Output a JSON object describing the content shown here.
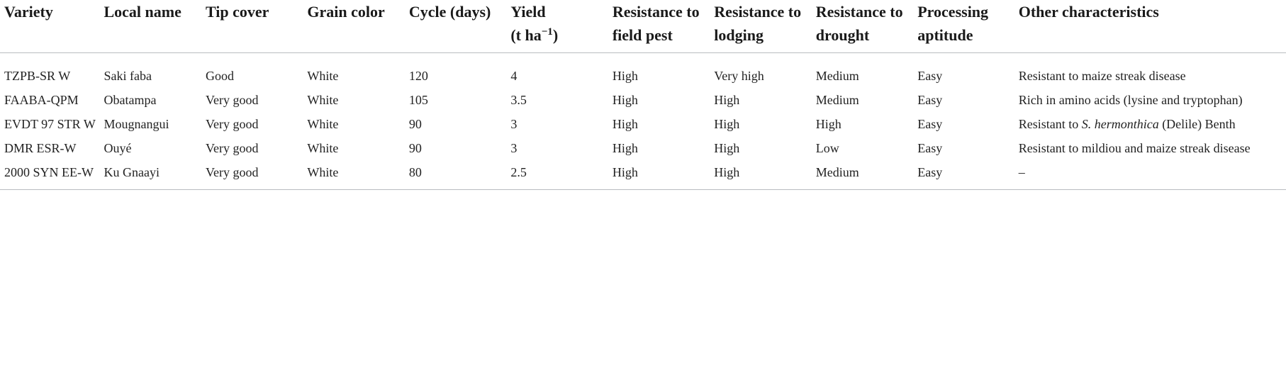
{
  "headers": {
    "variety": "Variety",
    "local_name": "Local name",
    "tip_cover": "Tip cover",
    "grain_color": "Grain color",
    "cycle": "Cycle (days)",
    "yield_prefix": "(t ha",
    "yield_exp": "−1",
    "yield_suffix": ")",
    "yield_title": "Yield",
    "field_pest": "Resistance to field pest",
    "lodging": "Resistance to lodging",
    "drought": "Resistance to drought",
    "processing": "Processing aptitude",
    "other": "Other characteristics"
  },
  "rows": [
    {
      "variety": "TZPB-SR W",
      "local_name": "Saki faba",
      "tip_cover": "Good",
      "grain_color": "White",
      "cycle": "120",
      "yield": "4",
      "field_pest": "High",
      "lodging": "Very high",
      "drought": "Medium",
      "processing": "Easy",
      "other_a": "Resistant to maize streak disease",
      "other_b": "",
      "other_c": ""
    },
    {
      "variety": "FAABA-QPM",
      "local_name": "Obatampa",
      "tip_cover": "Very good",
      "grain_color": "White",
      "cycle": "105",
      "yield": "3.5",
      "field_pest": "High",
      "lodging": "High",
      "drought": "Medium",
      "processing": "Easy",
      "other_a": "Rich in amino acids (lysine and tryptophan)",
      "other_b": "",
      "other_c": ""
    },
    {
      "variety": "EVDT 97 STR W",
      "local_name": "Mougnangui",
      "tip_cover": "Very good",
      "grain_color": "White",
      "cycle": "90",
      "yield": "3",
      "field_pest": "High",
      "lodging": "High",
      "drought": "High",
      "processing": "Easy",
      "other_a": "Resistant to ",
      "other_b": "S. hermonthica",
      "other_c": " (Delile) Benth"
    },
    {
      "variety": "DMR ESR-W",
      "local_name": "Ouyé",
      "tip_cover": "Very good",
      "grain_color": "White",
      "cycle": "90",
      "yield": "3",
      "field_pest": "High",
      "lodging": "High",
      "drought": "Low",
      "processing": "Easy",
      "other_a": "Resistant to mildiou and maize streak disease",
      "other_b": "",
      "other_c": ""
    },
    {
      "variety": "2000 SYN EE-W",
      "local_name": "Ku Gnaayi",
      "tip_cover": "Very good",
      "grain_color": "White",
      "cycle": "80",
      "yield": "2.5",
      "field_pest": "High",
      "lodging": "High",
      "drought": "Medium",
      "processing": "Easy",
      "other_a": "–",
      "other_b": "",
      "other_c": ""
    }
  ]
}
